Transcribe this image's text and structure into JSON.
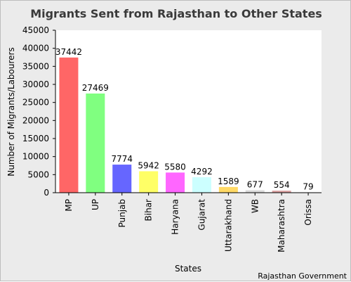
{
  "chart_data": {
    "type": "bar",
    "title": "Migrants Sent from Rajasthan to Other States",
    "xlabel": "States",
    "ylabel": "Number of Migrants/Labourers",
    "categories": [
      "MP",
      "UP",
      "Punjab",
      "Bihar",
      "Haryana",
      "Gujarat",
      "Uttarakhand",
      "WB",
      "Maharashtra",
      "Orissa"
    ],
    "values": [
      37442,
      27469,
      7774,
      5942,
      5580,
      4292,
      1589,
      677,
      554,
      79
    ],
    "data_labels": [
      "37442",
      "27469",
      "7774",
      "5942",
      "5580",
      "4292",
      "1589",
      "677",
      "554",
      "79"
    ],
    "bar_colors": [
      "#ff6666",
      "#80ff80",
      "#6666ff",
      "#ffff66",
      "#ff66ff",
      "#ccffff",
      "#ffd966",
      "#d9d9d9",
      "#d9a0a0",
      "#e6e6e6"
    ],
    "ylim": [
      0,
      45000
    ],
    "yticks": [
      0,
      5000,
      10000,
      15000,
      20000,
      25000,
      30000,
      35000,
      40000,
      45000
    ],
    "grid": false,
    "legend": "none",
    "source": "Rajasthan Government"
  }
}
